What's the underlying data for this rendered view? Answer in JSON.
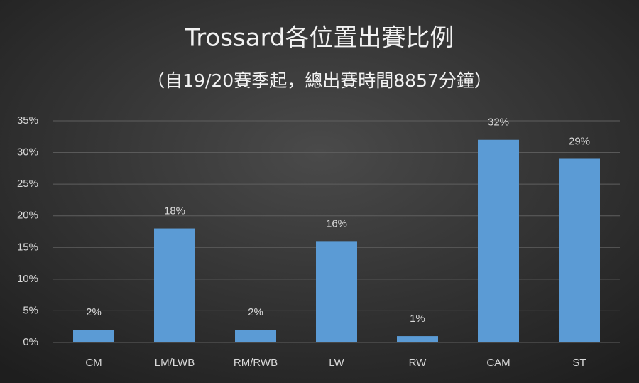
{
  "chart_data": {
    "type": "bar",
    "title": "Trossard各位置出賽比例",
    "subtitle": "（自19/20賽季起，總出賽時間8857分鐘）",
    "categories": [
      "CM",
      "LM/LWB",
      "RM/RWB",
      "LW",
      "RW",
      "CAM",
      "ST"
    ],
    "values": [
      2,
      18,
      2,
      16,
      1,
      32,
      29
    ],
    "value_labels": [
      "2%",
      "18%",
      "2%",
      "16%",
      "1%",
      "32%",
      "29%"
    ],
    "color": "#5b9bd5",
    "ylim": [
      0,
      35
    ],
    "yticks": [
      {
        "value": 0,
        "label": "0%"
      },
      {
        "value": 5,
        "label": "5%"
      },
      {
        "value": 10,
        "label": "10%"
      },
      {
        "value": 15,
        "label": "15%"
      },
      {
        "value": 20,
        "label": "20%"
      },
      {
        "value": 25,
        "label": "25%"
      },
      {
        "value": 30,
        "label": "30%"
      },
      {
        "value": 35,
        "label": "35%"
      }
    ],
    "grid": true
  }
}
